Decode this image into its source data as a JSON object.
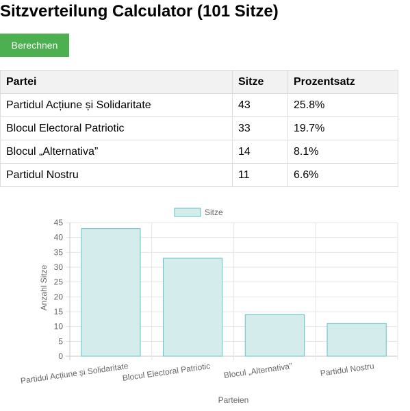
{
  "page": {
    "title": "Sitzverteilung Calculator (101 Sitze)",
    "calculate_label": "Berechnen",
    "button_color": "#4caf50"
  },
  "table": {
    "headers": [
      "Partei",
      "Sitze",
      "Prozentsatz"
    ],
    "rows": [
      {
        "party": "Partidul Acțiune și Solidaritate",
        "seats": "43",
        "percent": "25.8%"
      },
      {
        "party": "Blocul Electoral Patriotic",
        "seats": "33",
        "percent": "19.7%"
      },
      {
        "party": "Blocul „Alternativa”",
        "seats": "14",
        "percent": "8.1%"
      },
      {
        "party": "Partidul Nostru",
        "seats": "11",
        "percent": "6.6%"
      }
    ]
  },
  "chart_data": {
    "type": "bar",
    "categories": [
      "Partidul Acțiune și Solidaritate",
      "Blocul Electoral Patriotic",
      "Blocul „Alternativa”",
      "Partidul Nostru"
    ],
    "series": [
      {
        "name": "Sitze",
        "values": [
          43,
          33,
          14,
          11
        ]
      }
    ],
    "xlabel": "Parteien",
    "ylabel": "Anzahl Sitze",
    "ylim": [
      0,
      45
    ],
    "yticks": [
      0,
      5,
      10,
      15,
      20,
      25,
      30,
      35,
      40,
      45
    ],
    "grid": true,
    "legend_position": "top-center",
    "bar_fill": "#d5ecec",
    "bar_stroke": "#5ec4c4"
  }
}
